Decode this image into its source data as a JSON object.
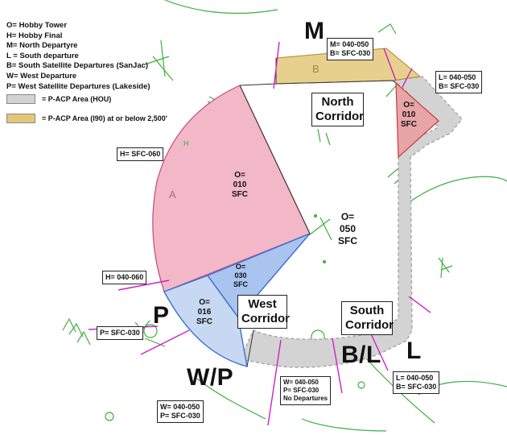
{
  "legend": {
    "lines": [
      "O= Hobby Tower",
      "H= Hobby Final",
      "M= North Departyre",
      "L = South departure",
      "B= South Satellite Departures (SanJac)",
      "W= West Departure",
      "P= West Satellite Departures (Lakeside)"
    ],
    "hou_area": "= P-ACP Area (HOU)",
    "i90_area": "= P-ACP Area (I90) at or below 2,500'"
  },
  "colors": {
    "hobby_final": "#f2b8c8",
    "hobby_tower_north": "#e8a5a8",
    "west_blue": "#c7d9f2",
    "west_inner_blue": "#a8c4ef",
    "hou_gray": "#d3d3d3",
    "i90_gold": "#e3c87a",
    "boundary_magenta": "#d020c8",
    "terrain_green": "#3fae3f"
  },
  "corridors": {
    "north": "North Corridor",
    "west": "West Corridor",
    "south": "South Corridor"
  },
  "big_labels": {
    "m": "M",
    "p": "P",
    "wp": "W/P",
    "bl": "B/L",
    "l": "L"
  },
  "sectors": {
    "o_010_main": [
      "O=",
      "010",
      "SFC"
    ],
    "o_050": [
      "O=",
      "050",
      "SFC"
    ],
    "o_030": [
      "O=",
      "030",
      "SFC"
    ],
    "o_016": [
      "O=",
      "016",
      "SFC"
    ],
    "o_010_ne": [
      "O=",
      "010",
      "SFC"
    ]
  },
  "alt_boxes": {
    "m": [
      "M= 040-050",
      "B= SFC-030"
    ],
    "l_ne": [
      "L= 040-050",
      "B= SFC-030"
    ],
    "h_060": [
      "H= SFC-060"
    ],
    "h_040": [
      "H= 040-060"
    ],
    "p": [
      "P= SFC-030"
    ],
    "w_south": [
      "W= 040-050",
      "P= SFC-030",
      "No Departures"
    ],
    "l_south": [
      "L= 040-050",
      "B= SFC-030"
    ],
    "wp": [
      "W= 040-050",
      "P= SFC-030"
    ]
  },
  "map_letters": {
    "a": "A",
    "b": "B",
    "h": "H"
  }
}
